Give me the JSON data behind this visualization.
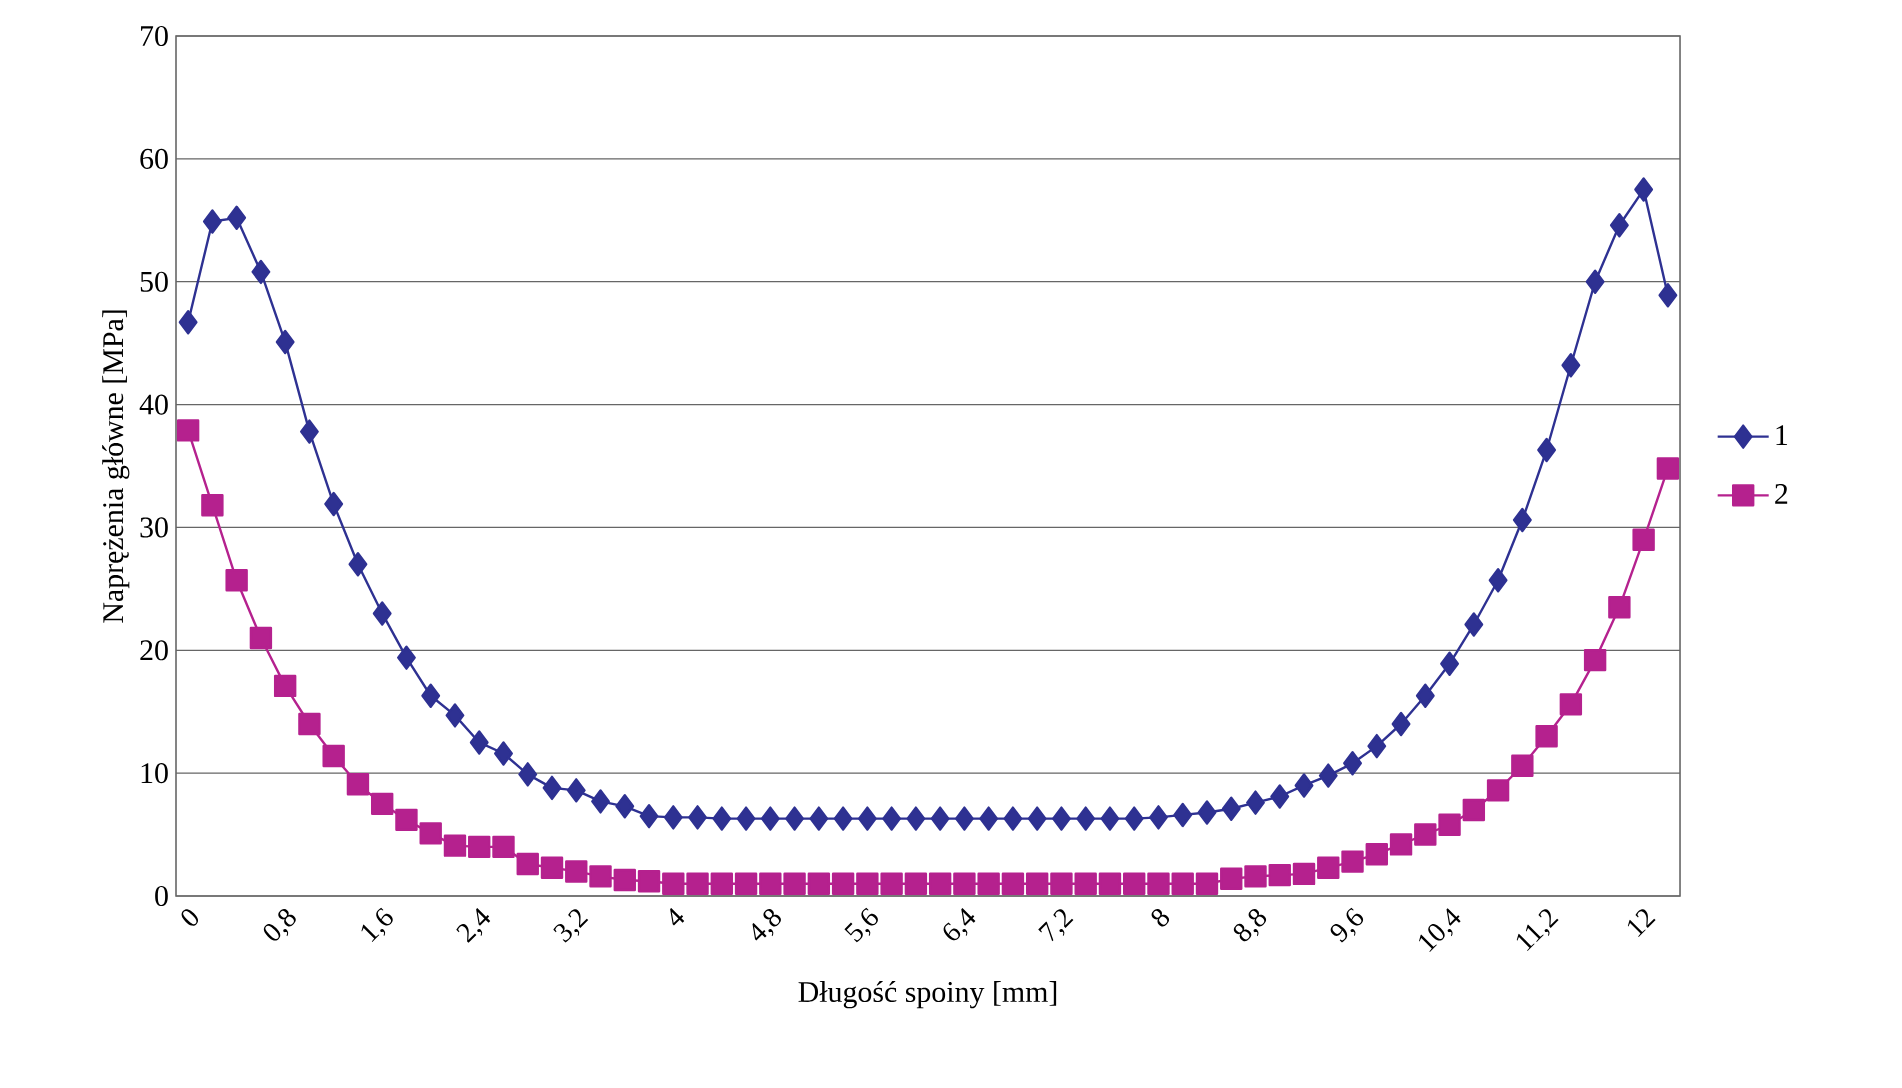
{
  "chart_data": {
    "type": "line",
    "xlabel": "Długość spoiny [mm]",
    "ylabel": "Naprężenia główne [MPa]",
    "x": [
      0,
      0.2,
      0.4,
      0.6,
      0.8,
      1.0,
      1.2,
      1.4,
      1.6,
      1.8,
      2.0,
      2.2,
      2.4,
      2.6,
      2.8,
      3.0,
      3.2,
      3.4,
      3.6,
      3.8,
      4.0,
      4.2,
      4.4,
      4.6,
      4.8,
      5.0,
      5.2,
      5.4,
      5.6,
      5.8,
      6.0,
      6.2,
      6.4,
      6.6,
      6.8,
      7.0,
      7.2,
      7.4,
      7.6,
      7.8,
      8.0,
      8.2,
      8.4,
      8.6,
      8.8,
      9.0,
      9.2,
      9.4,
      9.6,
      9.8,
      10.0,
      10.2,
      10.4,
      10.6,
      10.8,
      11.0,
      11.2,
      11.4,
      11.6,
      11.8,
      12.0,
      12.2
    ],
    "series": [
      {
        "name": "1",
        "color": "#2e3192",
        "marker": "diamond",
        "values": [
          46.7,
          54.9,
          55.2,
          50.8,
          45.1,
          37.8,
          31.9,
          27.0,
          23.0,
          19.4,
          16.3,
          14.7,
          12.5,
          11.6,
          9.9,
          8.8,
          8.6,
          7.7,
          7.3,
          6.5,
          6.4,
          6.4,
          6.3,
          6.3,
          6.3,
          6.3,
          6.3,
          6.3,
          6.3,
          6.3,
          6.3,
          6.3,
          6.3,
          6.3,
          6.3,
          6.3,
          6.3,
          6.3,
          6.3,
          6.3,
          6.4,
          6.6,
          6.8,
          7.1,
          7.6,
          8.1,
          9.0,
          9.8,
          10.8,
          12.2,
          14.0,
          16.3,
          18.9,
          22.1,
          25.7,
          30.6,
          36.3,
          43.2,
          50.0,
          54.6,
          57.5,
          48.9
        ]
      },
      {
        "name": "2",
        "color": "#b5218e",
        "marker": "square",
        "values": [
          37.9,
          31.8,
          25.7,
          21.0,
          17.1,
          14.0,
          11.4,
          9.1,
          7.5,
          6.2,
          5.1,
          4.1,
          4.0,
          4.0,
          2.6,
          2.3,
          2.0,
          1.6,
          1.3,
          1.2,
          1.0,
          1.0,
          1.0,
          1.0,
          1.0,
          1.0,
          1.0,
          1.0,
          1.0,
          1.0,
          1.0,
          1.0,
          1.0,
          1.0,
          1.0,
          1.0,
          1.0,
          1.0,
          1.0,
          1.0,
          1.0,
          1.0,
          1.0,
          1.4,
          1.6,
          1.7,
          1.8,
          2.3,
          2.8,
          3.4,
          4.2,
          5.0,
          5.8,
          7.0,
          8.6,
          10.6,
          13.0,
          15.6,
          19.2,
          23.5,
          29.0,
          34.8
        ]
      }
    ],
    "xlim": [
      -0.1,
      12.3
    ],
    "xticks": [
      0,
      {
        "value": 0.8,
        "label": "0,8"
      },
      {
        "value": 1.6,
        "label": "1,6"
      },
      {
        "value": 2.4,
        "label": "2,4"
      },
      {
        "value": 3.2,
        "label": "3,2"
      },
      4,
      {
        "value": 4.8,
        "label": "4,8"
      },
      {
        "value": 5.6,
        "label": "5,6"
      },
      {
        "value": 6.4,
        "label": "6,4"
      },
      {
        "value": 7.2,
        "label": "7,2"
      },
      8,
      {
        "value": 8.8,
        "label": "8,8"
      },
      {
        "value": 9.6,
        "label": "9,6"
      },
      {
        "value": 10.4,
        "label": "10,4"
      },
      {
        "value": 11.2,
        "label": "11,2"
      },
      12
    ],
    "ylim": [
      0,
      70
    ],
    "yticks": [
      0,
      10,
      20,
      30,
      40,
      50,
      60,
      70
    ],
    "grid": "y",
    "legend": "right",
    "line_style": "solid"
  }
}
